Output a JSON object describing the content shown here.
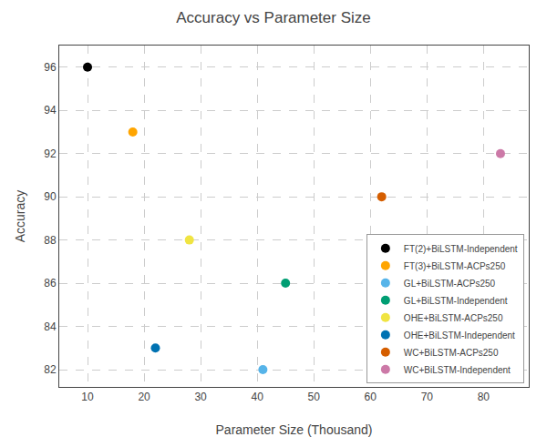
{
  "chart_data": {
    "type": "scatter",
    "title": "Accuracy vs Parameter Size",
    "xlabel": "Parameter Size (Thousand)",
    "ylabel": "Accuracy",
    "xlim": [
      5,
      88
    ],
    "ylim": [
      81.2,
      97
    ],
    "xticks": [
      10,
      20,
      30,
      40,
      50,
      60,
      70,
      80
    ],
    "yticks": [
      82,
      84,
      86,
      88,
      90,
      92,
      94,
      96
    ],
    "grid": true,
    "legend": "lower right",
    "marker": "circle",
    "series": [
      {
        "name": "FT(2)+BiLSTM-Independent",
        "color": "#000000",
        "x": [
          10
        ],
        "values": [
          96
        ]
      },
      {
        "name": "FT(3)+BiLSTM-ACPs250",
        "color": "#FFA500",
        "x": [
          18
        ],
        "values": [
          93
        ]
      },
      {
        "name": "GL+BiLSTM-ACPs250",
        "color": "#56B4E9",
        "x": [
          41
        ],
        "values": [
          82
        ]
      },
      {
        "name": "GL+BiLSTM-Independent",
        "color": "#009E73",
        "x": [
          45
        ],
        "values": [
          86
        ]
      },
      {
        "name": "OHE+BiLSTM-ACPs250",
        "color": "#F0E442",
        "x": [
          28
        ],
        "values": [
          88
        ]
      },
      {
        "name": "OHE+BiLSTM-Independent",
        "color": "#0072B2",
        "x": [
          22
        ],
        "values": [
          83
        ]
      },
      {
        "name": "WC+BiLSTM-ACPs250",
        "color": "#D55E00",
        "x": [
          62
        ],
        "values": [
          90
        ]
      },
      {
        "name": "WC+BiLSTM-Independent",
        "color": "#CC79A7",
        "x": [
          83
        ],
        "values": [
          92
        ]
      }
    ]
  }
}
